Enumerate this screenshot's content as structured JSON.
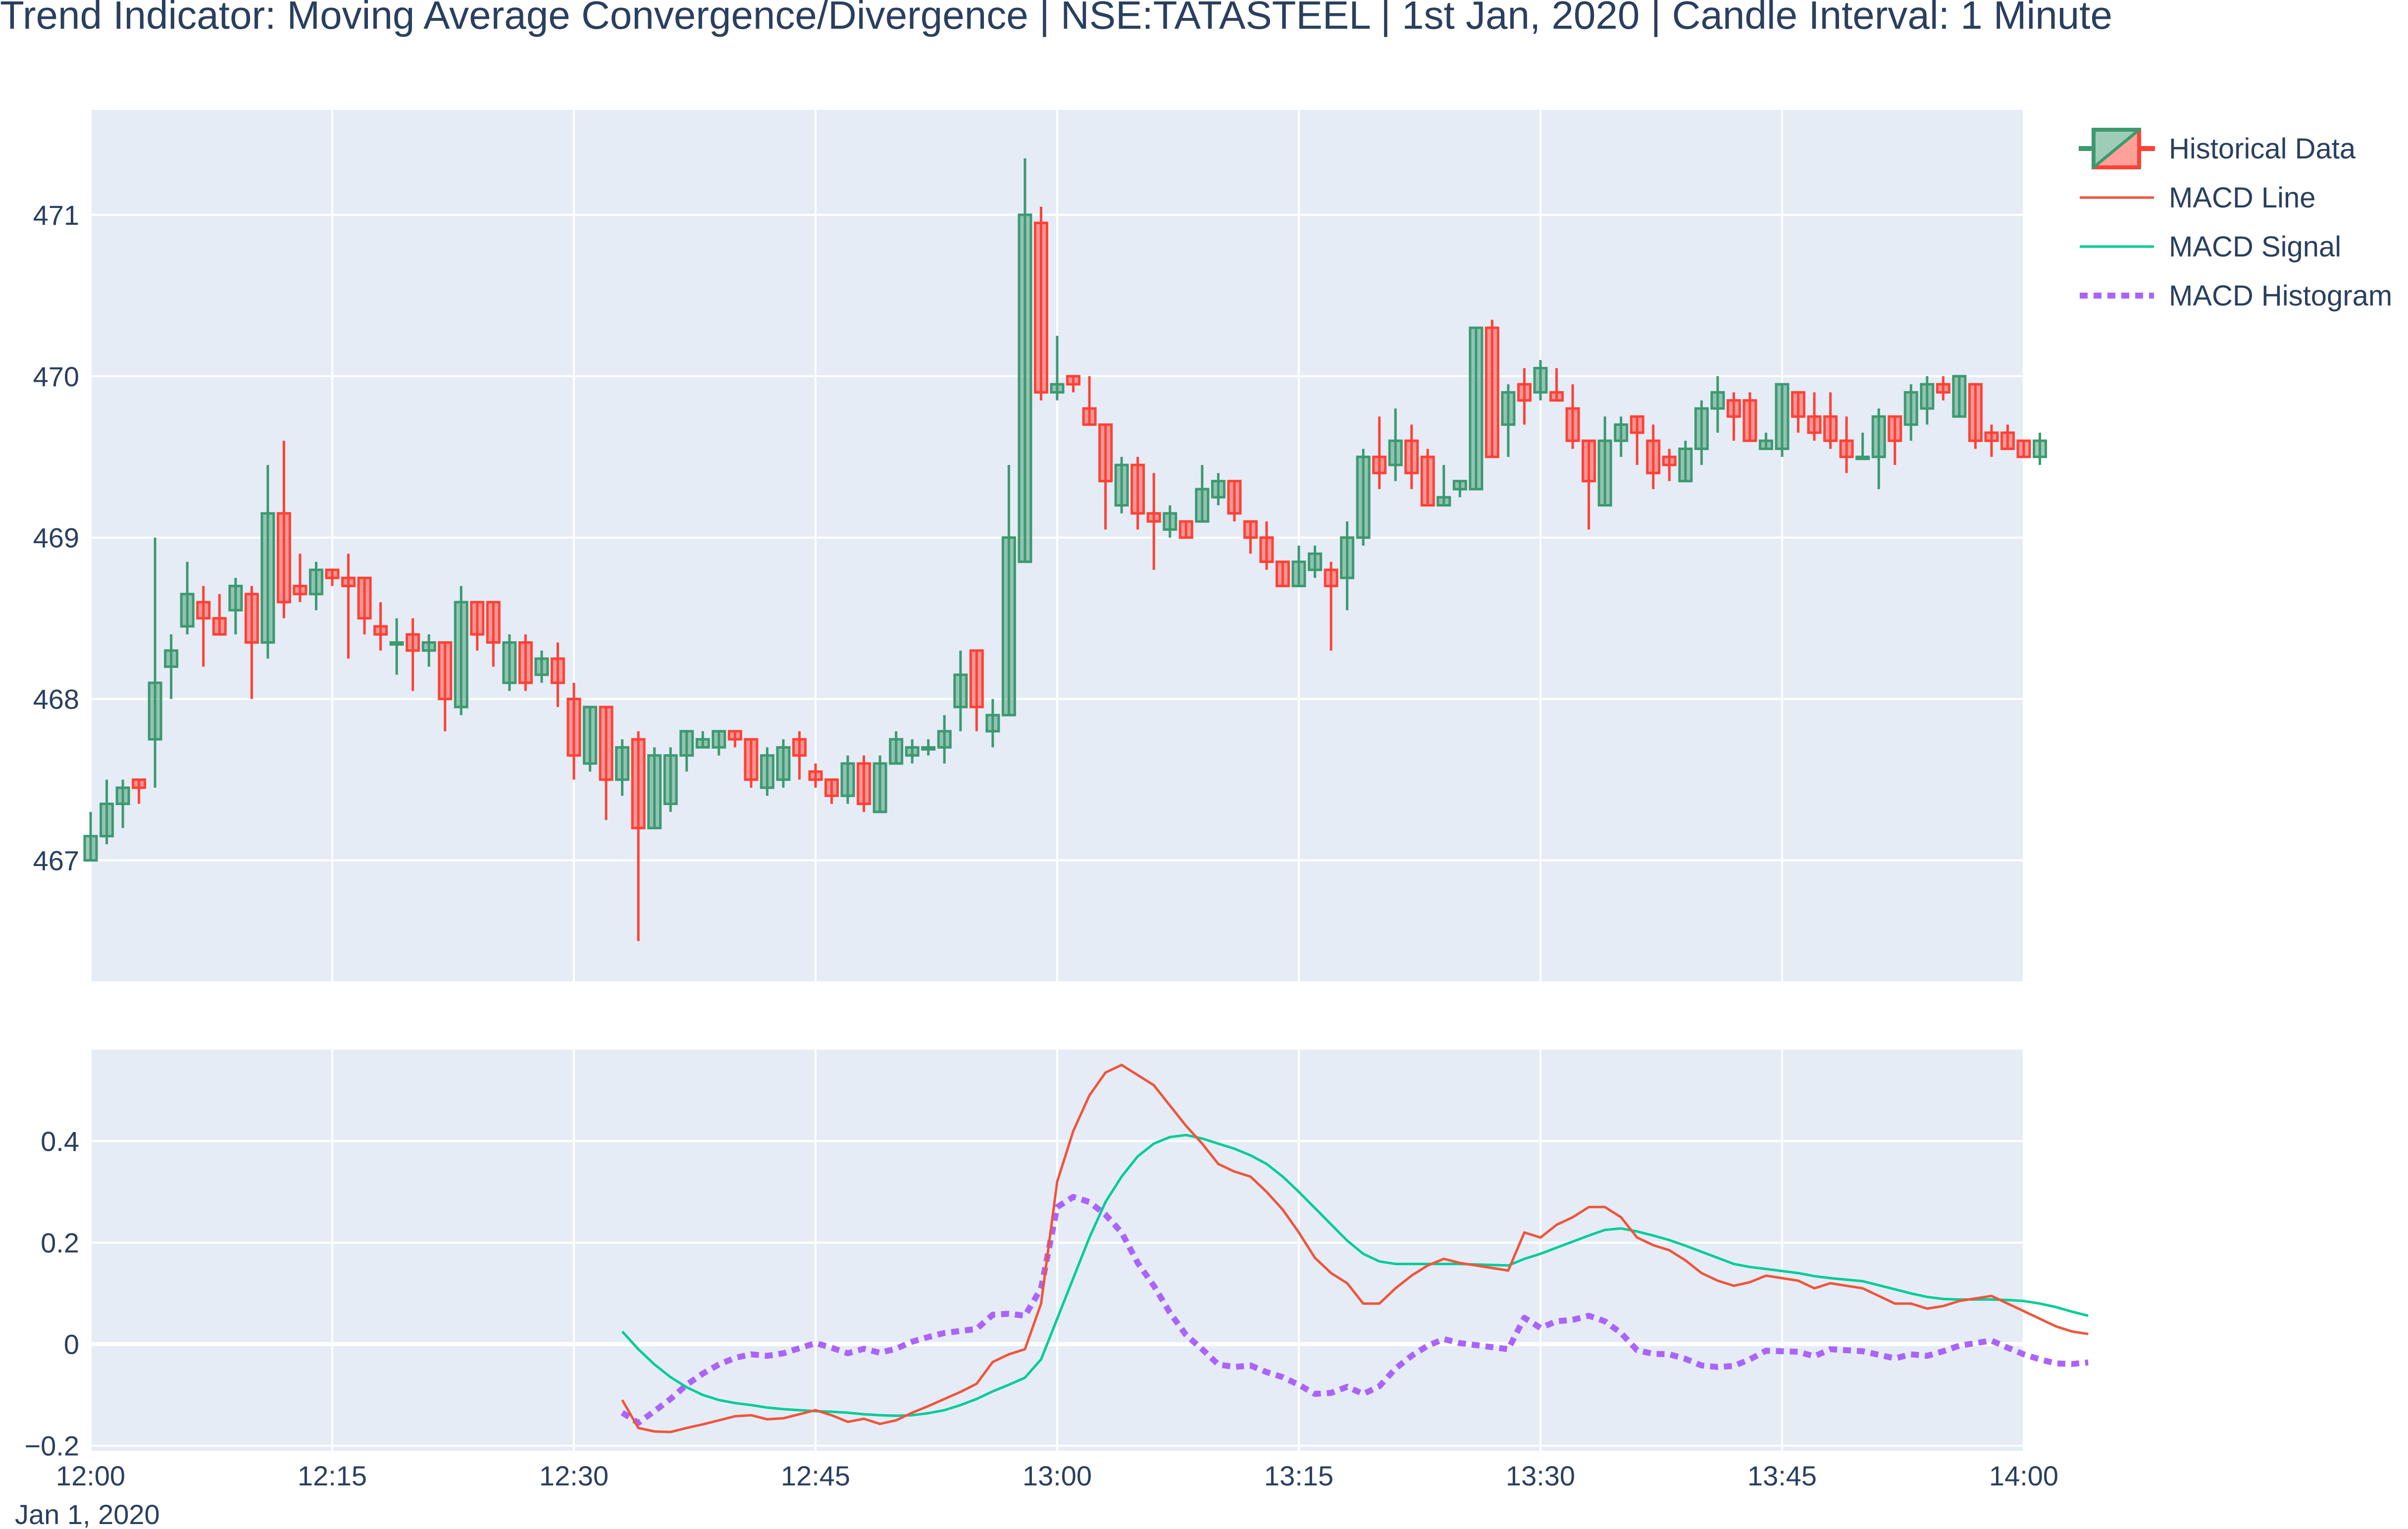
{
  "chart_data": {
    "type": "candlestick",
    "title": "Trend Indicator: Moving Average Convergence/Divergence | NSE:TATASTEEL | 1st Jan, 2020 | Candle Interval: 1 Minute",
    "colors": {
      "increasing": "#3d9970",
      "decreasing": "#ff4136",
      "macd_line": "#ef553b",
      "macd_signal": "#00cc96",
      "macd_histogram": "#ab63fa",
      "plot_bg": "#e5ecf6",
      "grid": "#ffffff"
    },
    "x_axis": {
      "tick_labels": [
        "12:00",
        "12:15",
        "12:30",
        "12:45",
        "13:00",
        "13:15",
        "13:30",
        "13:45",
        "14:00"
      ],
      "date_label": "Jan 1, 2020",
      "range_minutes_after_noon": [
        0,
        120
      ]
    },
    "price_axis": {
      "ylim": [
        466.25,
        471.65
      ],
      "tick_labels": [
        "467",
        "468",
        "469",
        "470",
        "471"
      ]
    },
    "macd_axis": {
      "ylim": [
        -0.21,
        0.58
      ],
      "tick_labels": [
        "−0.2",
        "0",
        "0.2",
        "0.4"
      ]
    },
    "legend": [
      "Historical Data",
      "MACD Line",
      "MACD Signal",
      "MACD Histogram"
    ],
    "ohlc_minute_start": 0,
    "ohlc": [
      [
        467.0,
        467.3,
        467.0,
        467.15
      ],
      [
        467.15,
        467.5,
        467.1,
        467.35
      ],
      [
        467.35,
        467.5,
        467.2,
        467.45
      ],
      [
        467.5,
        467.5,
        467.35,
        467.45
      ],
      [
        467.75,
        469.0,
        467.45,
        468.1
      ],
      [
        468.2,
        468.4,
        468.0,
        468.3
      ],
      [
        468.45,
        468.85,
        468.4,
        468.65
      ],
      [
        468.6,
        468.7,
        468.2,
        468.5
      ],
      [
        468.5,
        468.65,
        468.4,
        468.4
      ],
      [
        468.55,
        468.75,
        468.4,
        468.7
      ],
      [
        468.65,
        468.7,
        468.0,
        468.35
      ],
      [
        468.35,
        469.45,
        468.25,
        469.15
      ],
      [
        469.15,
        469.6,
        468.5,
        468.6
      ],
      [
        468.7,
        468.9,
        468.6,
        468.65
      ],
      [
        468.65,
        468.85,
        468.55,
        468.8
      ],
      [
        468.8,
        468.8,
        468.7,
        468.75
      ],
      [
        468.75,
        468.9,
        468.25,
        468.7
      ],
      [
        468.75,
        468.75,
        468.4,
        468.5
      ],
      [
        468.45,
        468.6,
        468.3,
        468.4
      ],
      [
        468.35,
        468.5,
        468.15,
        468.35
      ],
      [
        468.4,
        468.5,
        468.05,
        468.3
      ],
      [
        468.3,
        468.4,
        468.2,
        468.35
      ],
      [
        468.35,
        468.35,
        467.8,
        468.0
      ],
      [
        467.95,
        468.7,
        467.9,
        468.6
      ],
      [
        468.6,
        468.6,
        468.3,
        468.4
      ],
      [
        468.6,
        468.6,
        468.2,
        468.35
      ],
      [
        468.1,
        468.4,
        468.05,
        468.35
      ],
      [
        468.35,
        468.4,
        468.05,
        468.1
      ],
      [
        468.15,
        468.3,
        468.1,
        468.25
      ],
      [
        468.25,
        468.35,
        467.95,
        468.1
      ],
      [
        468.0,
        468.1,
        467.5,
        467.65
      ],
      [
        467.6,
        467.95,
        467.55,
        467.95
      ],
      [
        467.95,
        467.95,
        467.25,
        467.5
      ],
      [
        467.5,
        467.75,
        467.4,
        467.7
      ],
      [
        467.75,
        467.8,
        466.5,
        467.2
      ],
      [
        467.2,
        467.7,
        467.2,
        467.65
      ],
      [
        467.35,
        467.7,
        467.3,
        467.65
      ],
      [
        467.65,
        467.8,
        467.55,
        467.8
      ],
      [
        467.7,
        467.8,
        467.7,
        467.75
      ],
      [
        467.7,
        467.8,
        467.65,
        467.8
      ],
      [
        467.8,
        467.8,
        467.7,
        467.75
      ],
      [
        467.75,
        467.75,
        467.45,
        467.5
      ],
      [
        467.45,
        467.7,
        467.4,
        467.65
      ],
      [
        467.5,
        467.75,
        467.45,
        467.7
      ],
      [
        467.75,
        467.8,
        467.5,
        467.65
      ],
      [
        467.55,
        467.6,
        467.45,
        467.5
      ],
      [
        467.5,
        467.5,
        467.35,
        467.4
      ],
      [
        467.4,
        467.65,
        467.35,
        467.6
      ],
      [
        467.6,
        467.65,
        467.3,
        467.35
      ],
      [
        467.3,
        467.65,
        467.3,
        467.6
      ],
      [
        467.6,
        467.8,
        467.6,
        467.75
      ],
      [
        467.65,
        467.75,
        467.6,
        467.7
      ],
      [
        467.7,
        467.75,
        467.65,
        467.7
      ],
      [
        467.7,
        467.9,
        467.6,
        467.8
      ],
      [
        467.95,
        468.3,
        467.8,
        468.15
      ],
      [
        468.3,
        468.3,
        467.8,
        467.95
      ],
      [
        467.8,
        468.0,
        467.7,
        467.9
      ],
      [
        467.9,
        469.45,
        467.9,
        469.0
      ],
      [
        468.85,
        471.35,
        468.85,
        471.0
      ],
      [
        470.95,
        471.05,
        469.85,
        469.9
      ],
      [
        469.9,
        470.25,
        469.85,
        469.95
      ],
      [
        470.0,
        470.0,
        469.9,
        469.95
      ],
      [
        469.8,
        470.0,
        469.7,
        469.7
      ],
      [
        469.7,
        469.7,
        469.05,
        469.35
      ],
      [
        469.2,
        469.5,
        469.15,
        469.45
      ],
      [
        469.45,
        469.5,
        469.05,
        469.15
      ],
      [
        469.15,
        469.4,
        468.8,
        469.1
      ],
      [
        469.05,
        469.2,
        469.0,
        469.15
      ],
      [
        469.1,
        469.1,
        469.0,
        469.0
      ],
      [
        469.1,
        469.45,
        469.1,
        469.3
      ],
      [
        469.25,
        469.4,
        469.2,
        469.35
      ],
      [
        469.35,
        469.35,
        469.1,
        469.15
      ],
      [
        469.1,
        469.1,
        468.9,
        469.0
      ],
      [
        469.0,
        469.1,
        468.8,
        468.85
      ],
      [
        468.85,
        468.85,
        468.7,
        468.7
      ],
      [
        468.7,
        468.95,
        468.7,
        468.85
      ],
      [
        468.8,
        468.95,
        468.75,
        468.9
      ],
      [
        468.8,
        468.85,
        468.3,
        468.7
      ],
      [
        468.75,
        469.1,
        468.55,
        469.0
      ],
      [
        469.0,
        469.55,
        468.95,
        469.5
      ],
      [
        469.5,
        469.75,
        469.3,
        469.4
      ],
      [
        469.45,
        469.8,
        469.35,
        469.6
      ],
      [
        469.6,
        469.7,
        469.3,
        469.4
      ],
      [
        469.5,
        469.55,
        469.2,
        469.2
      ],
      [
        469.2,
        469.45,
        469.2,
        469.25
      ],
      [
        469.3,
        469.35,
        469.25,
        469.35
      ],
      [
        469.3,
        470.3,
        469.3,
        470.3
      ],
      [
        470.3,
        470.35,
        469.5,
        469.5
      ],
      [
        469.7,
        469.95,
        469.5,
        469.9
      ],
      [
        469.95,
        470.05,
        469.7,
        469.85
      ],
      [
        469.9,
        470.1,
        469.85,
        470.05
      ],
      [
        469.9,
        470.05,
        469.85,
        469.85
      ],
      [
        469.8,
        469.95,
        469.55,
        469.6
      ],
      [
        469.6,
        469.6,
        469.05,
        469.35
      ],
      [
        469.2,
        469.75,
        469.2,
        469.6
      ],
      [
        469.6,
        469.75,
        469.5,
        469.7
      ],
      [
        469.75,
        469.75,
        469.45,
        469.65
      ],
      [
        469.6,
        469.7,
        469.3,
        469.4
      ],
      [
        469.5,
        469.55,
        469.35,
        469.45
      ],
      [
        469.35,
        469.6,
        469.35,
        469.55
      ],
      [
        469.55,
        469.85,
        469.45,
        469.8
      ],
      [
        469.8,
        470.0,
        469.65,
        469.9
      ],
      [
        469.85,
        469.9,
        469.6,
        469.75
      ],
      [
        469.85,
        469.9,
        469.6,
        469.6
      ],
      [
        469.55,
        469.65,
        469.55,
        469.6
      ],
      [
        469.55,
        469.95,
        469.5,
        469.95
      ],
      [
        469.9,
        469.9,
        469.65,
        469.75
      ],
      [
        469.75,
        469.9,
        469.6,
        469.65
      ],
      [
        469.75,
        469.9,
        469.55,
        469.6
      ],
      [
        469.6,
        469.75,
        469.4,
        469.5
      ],
      [
        469.5,
        469.65,
        469.5,
        469.5
      ],
      [
        469.5,
        469.8,
        469.3,
        469.75
      ],
      [
        469.75,
        469.75,
        469.45,
        469.6
      ],
      [
        469.7,
        469.95,
        469.6,
        469.9
      ],
      [
        469.8,
        470.0,
        469.7,
        469.95
      ],
      [
        469.95,
        470.0,
        469.85,
        469.9
      ],
      [
        469.75,
        470.0,
        469.75,
        470.0
      ],
      [
        469.95,
        469.95,
        469.55,
        469.6
      ],
      [
        469.65,
        469.7,
        469.5,
        469.6
      ],
      [
        469.65,
        469.7,
        469.55,
        469.55
      ],
      [
        469.6,
        469.6,
        469.5,
        469.5
      ],
      [
        469.5,
        469.65,
        469.45,
        469.6
      ]
    ],
    "macd_minute_start": 33,
    "macd_line": [
      -0.11,
      -0.165,
      -0.172,
      -0.173,
      -0.165,
      -0.158,
      -0.15,
      -0.142,
      -0.14,
      -0.148,
      -0.146,
      -0.138,
      -0.13,
      -0.14,
      -0.153,
      -0.147,
      -0.157,
      -0.15,
      -0.135,
      -0.122,
      -0.108,
      -0.094,
      -0.078,
      -0.035,
      -0.02,
      -0.01,
      0.08,
      0.32,
      0.42,
      0.49,
      0.535,
      0.55,
      0.53,
      0.51,
      0.47,
      0.43,
      0.395,
      0.355,
      0.34,
      0.33,
      0.3,
      0.265,
      0.22,
      0.17,
      0.14,
      0.12,
      0.08,
      0.08,
      0.11,
      0.135,
      0.155,
      0.168,
      0.16,
      0.155,
      0.15,
      0.145,
      0.22,
      0.21,
      0.235,
      0.25,
      0.27,
      0.27,
      0.25,
      0.21,
      0.195,
      0.185,
      0.165,
      0.14,
      0.125,
      0.115,
      0.122,
      0.135,
      0.13,
      0.125,
      0.11,
      0.12,
      0.115,
      0.11,
      0.095,
      0.08,
      0.08,
      0.07,
      0.075,
      0.085,
      0.09,
      0.095,
      0.08,
      0.065,
      0.05,
      0.035,
      0.025,
      0.02
    ],
    "macd_signal": [
      0.025,
      -0.01,
      -0.04,
      -0.065,
      -0.085,
      -0.1,
      -0.11,
      -0.116,
      -0.12,
      -0.125,
      -0.128,
      -0.13,
      -0.132,
      -0.133,
      -0.135,
      -0.138,
      -0.14,
      -0.141,
      -0.14,
      -0.136,
      -0.13,
      -0.12,
      -0.108,
      -0.093,
      -0.08,
      -0.066,
      -0.03,
      0.05,
      0.13,
      0.21,
      0.28,
      0.33,
      0.37,
      0.395,
      0.408,
      0.412,
      0.405,
      0.395,
      0.385,
      0.372,
      0.355,
      0.33,
      0.3,
      0.268,
      0.236,
      0.204,
      0.178,
      0.163,
      0.158,
      0.158,
      0.158,
      0.158,
      0.158,
      0.157,
      0.156,
      0.155,
      0.168,
      0.178,
      0.19,
      0.202,
      0.214,
      0.225,
      0.228,
      0.222,
      0.214,
      0.205,
      0.194,
      0.182,
      0.17,
      0.158,
      0.152,
      0.148,
      0.144,
      0.14,
      0.134,
      0.13,
      0.127,
      0.124,
      0.116,
      0.108,
      0.1,
      0.093,
      0.089,
      0.088,
      0.088,
      0.088,
      0.087,
      0.085,
      0.08,
      0.073,
      0.064,
      0.056
    ],
    "macd_histogram": [
      -0.135,
      -0.155,
      -0.132,
      -0.108,
      -0.08,
      -0.058,
      -0.04,
      -0.027,
      -0.02,
      -0.023,
      -0.018,
      -0.008,
      0.002,
      -0.007,
      -0.018,
      -0.009,
      -0.017,
      -0.009,
      0.005,
      0.014,
      0.022,
      0.026,
      0.03,
      0.058,
      0.06,
      0.056,
      0.11,
      0.27,
      0.29,
      0.28,
      0.255,
      0.22,
      0.16,
      0.115,
      0.062,
      0.018,
      -0.01,
      -0.04,
      -0.045,
      -0.042,
      -0.055,
      -0.065,
      -0.08,
      -0.098,
      -0.096,
      -0.084,
      -0.098,
      -0.083,
      -0.048,
      -0.023,
      -0.003,
      0.01,
      0.002,
      -0.002,
      -0.006,
      -0.01,
      0.052,
      0.032,
      0.045,
      0.048,
      0.056,
      0.045,
      0.022,
      -0.012,
      -0.019,
      -0.02,
      -0.029,
      -0.042,
      -0.045,
      -0.043,
      -0.03,
      -0.013,
      -0.014,
      -0.015,
      -0.024,
      -0.01,
      -0.012,
      -0.014,
      -0.021,
      -0.028,
      -0.02,
      -0.023,
      -0.014,
      -0.003,
      0.002,
      0.007,
      -0.007,
      -0.02,
      -0.03,
      -0.038,
      -0.039,
      -0.036
    ]
  }
}
